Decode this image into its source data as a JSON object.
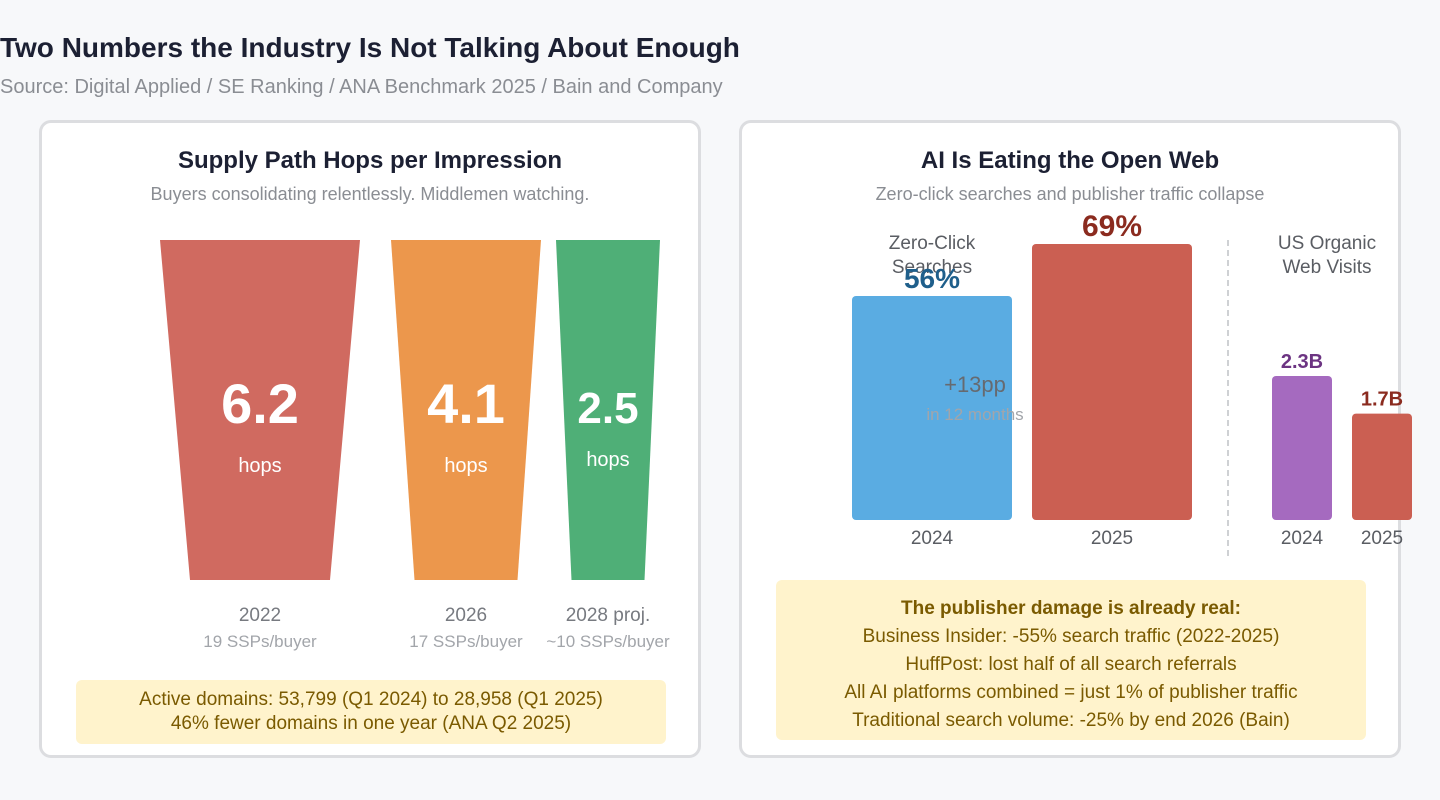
{
  "header": {
    "title": "Two Numbers the Industry Is Not Talking About Enough",
    "source": "Source: Digital Applied / SE Ranking / ANA Benchmark 2025 / Bain and Company"
  },
  "left_panel": {
    "title": "Supply Path Hops per Impression",
    "subtitle": "Buyers consolidating relentlessly. Middlemen watching.",
    "note_lines": [
      "Active domains: 53,799 (Q1 2024) to 28,958 (Q1 2025)",
      "46% fewer domains in one year (ANA Q2 2025)"
    ]
  },
  "right_panel": {
    "title": "AI Is Eating the Open Web",
    "subtitle": "Zero-click searches and publisher traffic collapse",
    "note_heading": "The publisher damage is already real:",
    "note_lines": [
      "Business Insider: -55% search traffic (2022-2025)",
      "HuffPost: lost half of all search referrals",
      "All AI platforms combined = just 1% of publisher traffic",
      "Traditional search volume: -25% by end 2026 (Bain)"
    ]
  },
  "colors": {
    "red": "#d06a60",
    "orange": "#ec974c",
    "green": "#4faf77",
    "blue": "#5aace2",
    "bar_red": "#cb5f52",
    "purple": "#a56abf",
    "blue_text": "#1f5f8b",
    "red_text": "#8b2b1f",
    "purple_text": "#6c3482",
    "dark_red_text": "#8b2b1f"
  },
  "chart_data": [
    {
      "type": "bar",
      "title": "Supply Path Hops per Impression",
      "categories": [
        "2022",
        "2026",
        "2028 proj."
      ],
      "values": [
        6.2,
        4.1,
        2.5
      ],
      "unit_label": "hops",
      "sublabels": [
        "19 SSPs/buyer",
        "17 SSPs/buyer",
        "~10 SSPs/buyer"
      ]
    },
    {
      "type": "bar",
      "title": "Zero-Click Searches",
      "categories": [
        "2024",
        "2025"
      ],
      "values": [
        56,
        69
      ],
      "value_labels": [
        "56%",
        "69%"
      ],
      "annotation": "+13pp",
      "annotation_sub": "in 12 months",
      "ylim": [
        0,
        100
      ]
    },
    {
      "type": "bar",
      "title": "US Organic Web Visits",
      "categories": [
        "2024",
        "2025"
      ],
      "values": [
        2.3,
        1.7
      ],
      "value_labels": [
        "2.3B",
        "1.7B"
      ]
    }
  ]
}
